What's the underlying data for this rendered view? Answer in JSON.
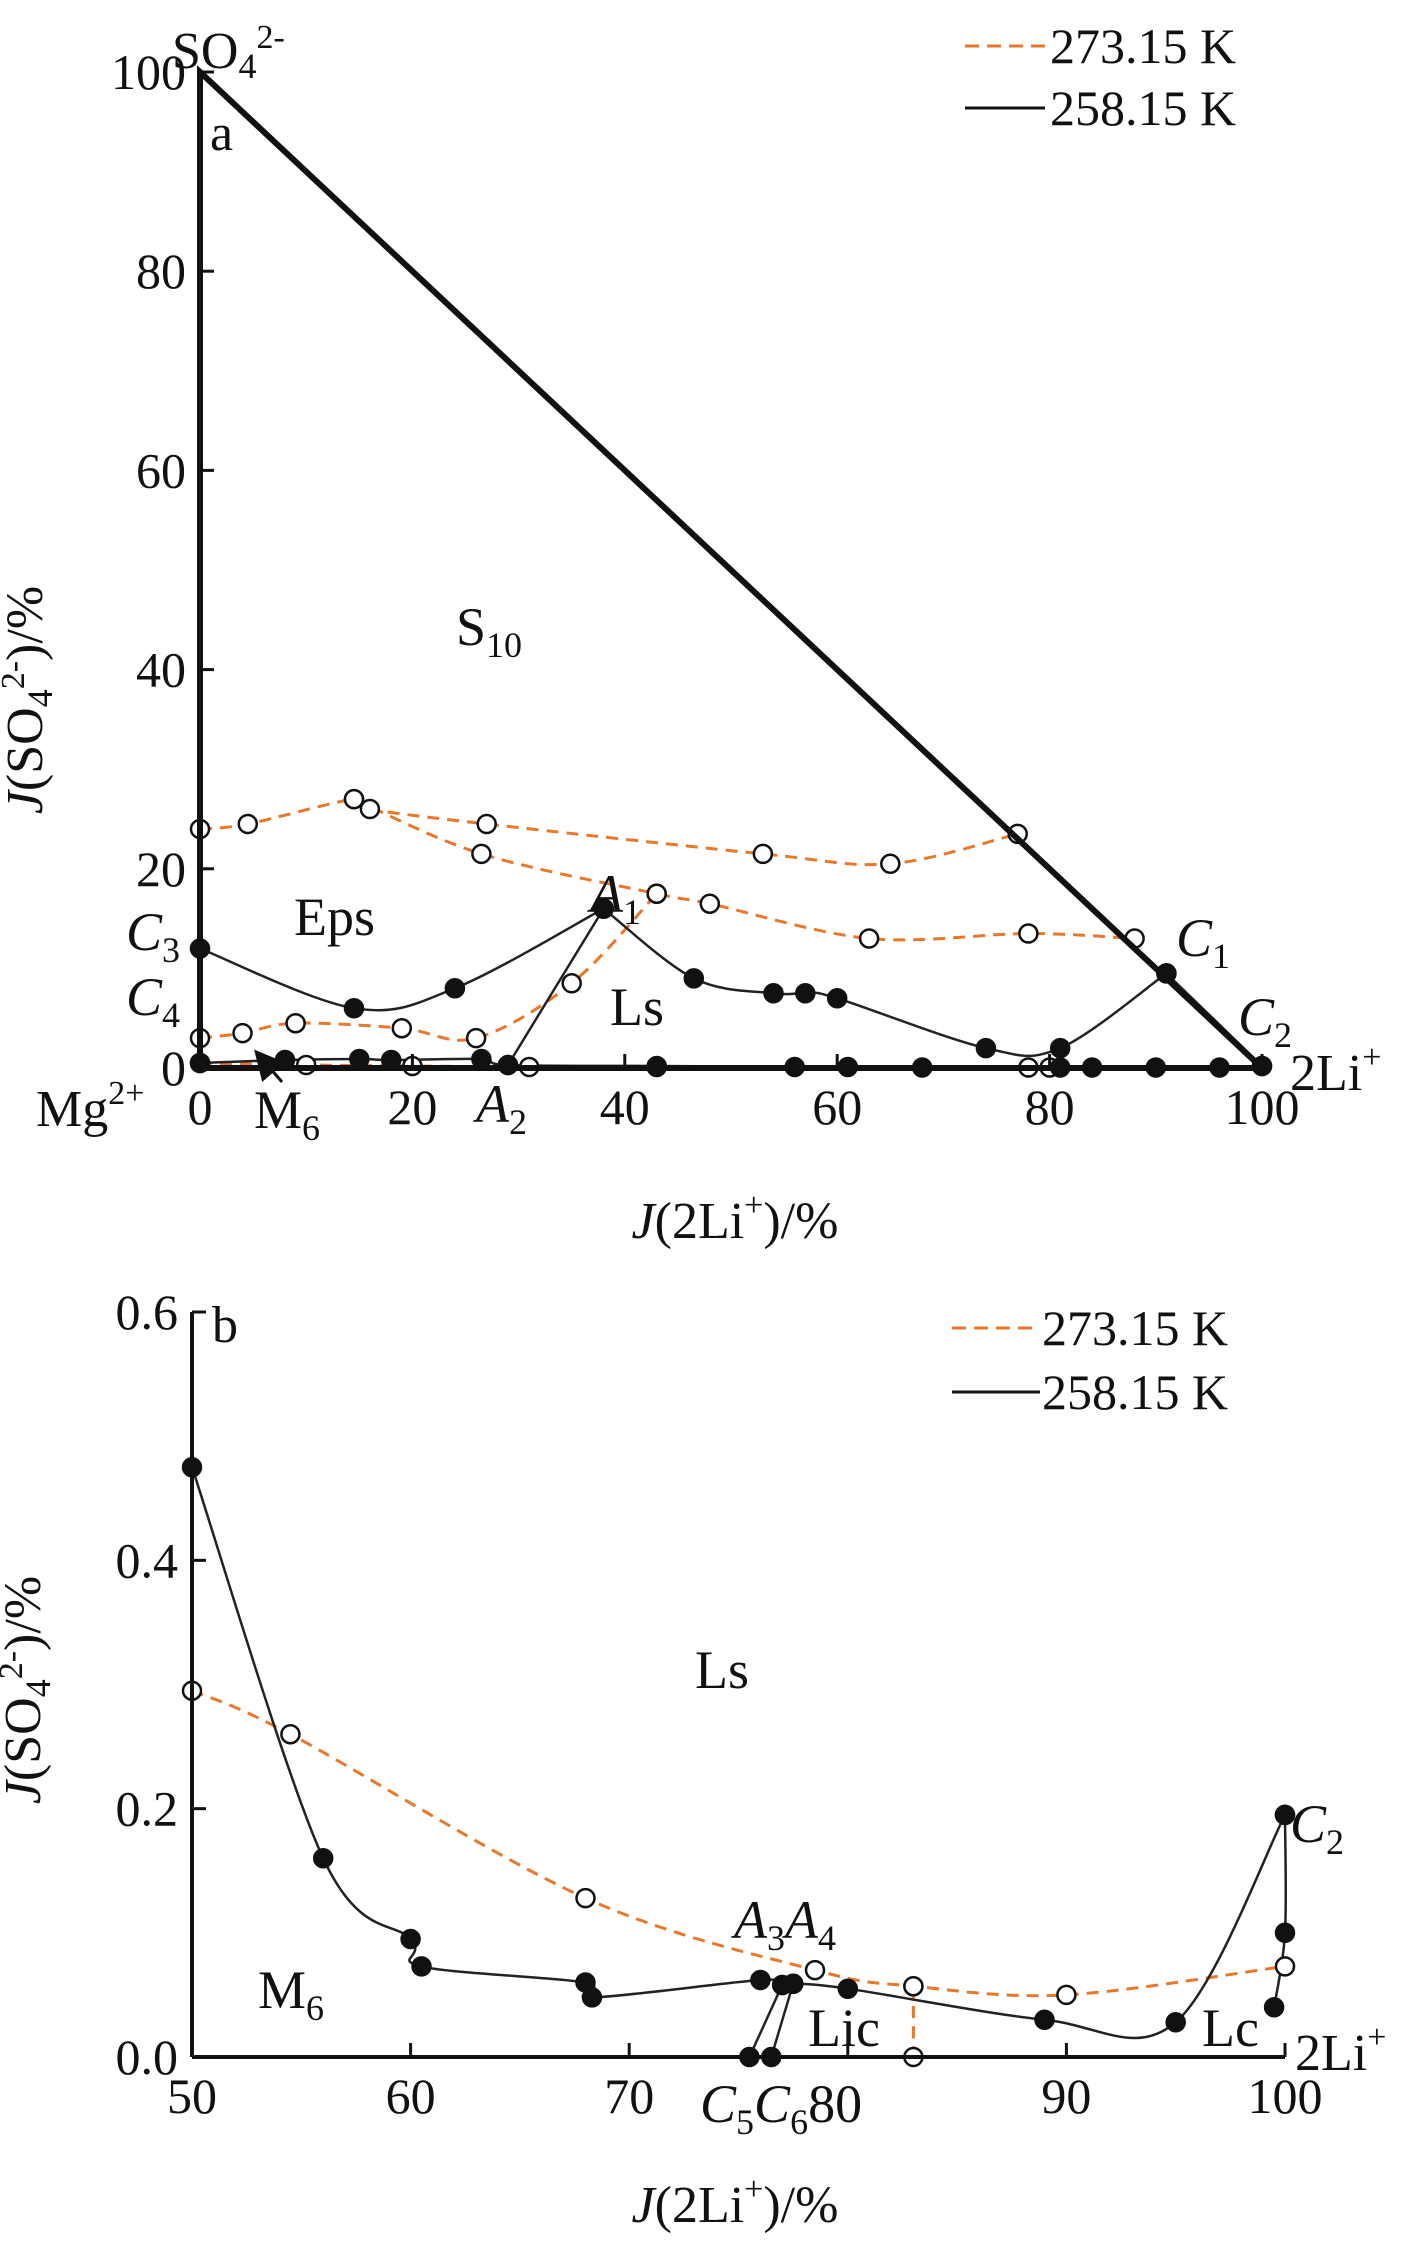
{
  "chart_data": [
    {
      "panel": "a",
      "type": "line",
      "xlabel": "J(2Li+)/%",
      "ylabel": "J(SO42-)/%",
      "xlim": [
        0,
        100
      ],
      "ylim": [
        0,
        100
      ],
      "xticks": [
        "0",
        "20",
        "40",
        "60",
        "80",
        "100"
      ],
      "yticks": [
        "0",
        "20",
        "40",
        "60",
        "80",
        "100"
      ],
      "corner_labels": {
        "top": "SO42-",
        "left": "Mg2+",
        "right": "2Li+"
      },
      "legend": [
        {
          "label": "273.15 K",
          "color": "#e8782a",
          "style": "dashed"
        },
        {
          "label": "258.15 K",
          "color": "#111111",
          "style": "solid"
        }
      ],
      "regions": [
        "S10",
        "Eps",
        "Ls"
      ],
      "points": [
        "A1",
        "A2",
        "C1",
        "C2",
        "C3",
        "C4",
        "M6"
      ],
      "boundary": [
        [
          0,
          100
        ],
        [
          100,
          0
        ],
        [
          0,
          0
        ]
      ],
      "series": [
        {
          "name": "273.15 K",
          "segment": "upper",
          "x": [
            0,
            4.5,
            14.5,
            16,
            27,
            53,
            65,
            77
          ],
          "y": [
            24,
            24.5,
            27,
            26,
            24.5,
            21.5,
            20.5,
            23.5
          ]
        },
        {
          "name": "273.15 K",
          "segment": "middle",
          "x": [
            14.5,
            26.5,
            43,
            48,
            63,
            78,
            88
          ],
          "y": [
            27,
            21.5,
            17.5,
            16.5,
            13,
            13.5,
            13
          ]
        },
        {
          "name": "273.15 K",
          "segment": "lower",
          "x": [
            0,
            4,
            9,
            19,
            26,
            35,
            43
          ],
          "y": [
            3,
            3.5,
            4.5,
            4,
            3,
            8.5,
            17.5
          ]
        },
        {
          "name": "273.15 K",
          "segment": "bottom",
          "x": [
            0,
            10,
            20,
            31,
            43,
            78,
            80
          ],
          "y": [
            0.5,
            0.3,
            0.2,
            0.1,
            0.1,
            0.05,
            0.05
          ]
        },
        {
          "name": "258.15 K",
          "segment": "eps-ls",
          "x": [
            0,
            14.5,
            24,
            38
          ],
          "y": [
            12,
            6,
            8,
            16
          ]
        },
        {
          "name": "258.15 K",
          "segment": "ls-upper",
          "x": [
            38,
            46.5,
            54,
            57,
            60,
            74,
            81,
            91
          ],
          "y": [
            16,
            9,
            7.5,
            7.5,
            7,
            2,
            2,
            9.5
          ]
        },
        {
          "name": "258.15 K",
          "segment": "c1-c2",
          "x": [
            91,
            100
          ],
          "y": [
            9.5,
            0.2
          ]
        },
        {
          "name": "258.15 K",
          "segment": "a1-a2",
          "x": [
            38,
            29
          ],
          "y": [
            16,
            0.3
          ]
        },
        {
          "name": "258.15 K",
          "segment": "bottom",
          "x": [
            0,
            8,
            15,
            18,
            26.5,
            29,
            43,
            56,
            61,
            68,
            81,
            84,
            90,
            96,
            100
          ],
          "y": [
            0.5,
            0.8,
            0.9,
            0.8,
            0.9,
            0.3,
            0.2,
            0.1,
            0.1,
            0.05,
            0.05,
            0.05,
            0.05,
            0.05,
            0.2
          ]
        }
      ]
    },
    {
      "panel": "b",
      "type": "line",
      "xlabel": "J(2Li+)/%",
      "ylabel": "J(SO42-)/%",
      "xlim": [
        50,
        100
      ],
      "ylim": [
        0,
        0.6
      ],
      "xticks": [
        "50",
        "60",
        "70",
        "80",
        "90",
        "100"
      ],
      "yticks": [
        "0.0",
        "0.2",
        "0.4",
        "0.6"
      ],
      "corner_labels": {
        "right": "2Li+"
      },
      "legend": [
        {
          "label": "273.15 K",
          "color": "#e8782a",
          "style": "dashed"
        },
        {
          "label": "258.15 K",
          "color": "#111111",
          "style": "solid"
        }
      ],
      "regions": [
        "Ls",
        "M6",
        "Lic",
        "Lc"
      ],
      "points": [
        "A3",
        "A4",
        "C2",
        "C5",
        "C6"
      ],
      "series": [
        {
          "name": "273.15 K",
          "segment": "main",
          "x": [
            50,
            54.5,
            68,
            78.5,
            83,
            90,
            100
          ],
          "y": [
            0.295,
            0.26,
            0.128,
            0.07,
            0.057,
            0.05,
            0.073
          ]
        },
        {
          "name": "273.15 K",
          "segment": "vertical",
          "x": [
            83,
            83
          ],
          "y": [
            0.057,
            0.0
          ]
        },
        {
          "name": "258.15 K",
          "segment": "main",
          "x": [
            50,
            56,
            60,
            60.5,
            68,
            68.3,
            76,
            77,
            77.5,
            80,
            89,
            95,
            100
          ],
          "y": [
            0.475,
            0.16,
            0.095,
            0.073,
            0.06,
            0.048,
            0.062,
            0.058,
            0.059,
            0.055,
            0.03,
            0.028,
            0.195
          ]
        },
        {
          "name": "258.15 K",
          "segment": "c2-tail",
          "x": [
            99.5,
            100,
            100
          ],
          "y": [
            0.04,
            0.1,
            0.195
          ]
        },
        {
          "name": "258.15 K",
          "segment": "to-c5",
          "x": [
            77,
            75.5
          ],
          "y": [
            0.058,
            0.0
          ]
        },
        {
          "name": "258.15 K",
          "segment": "to-c6",
          "x": [
            77.5,
            76.5
          ],
          "y": [
            0.059,
            0.0
          ]
        }
      ]
    }
  ]
}
